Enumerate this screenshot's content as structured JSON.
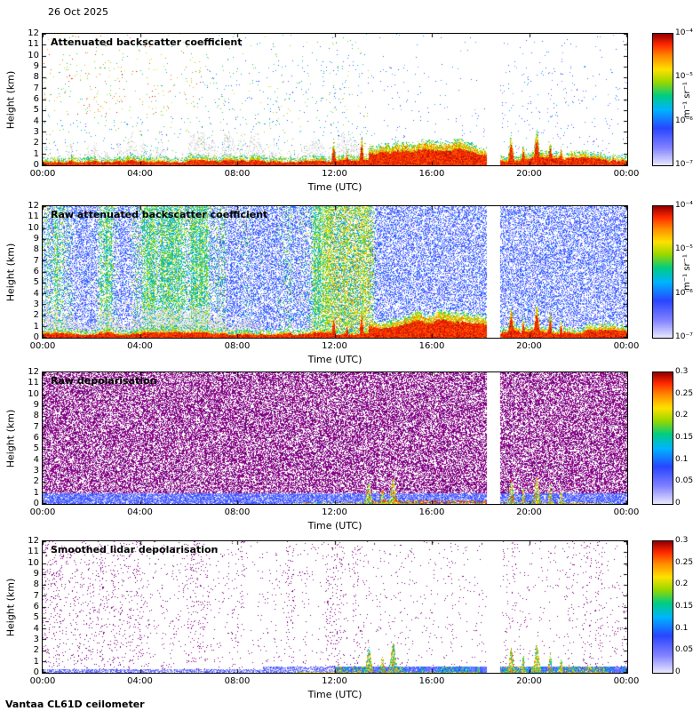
{
  "header": {
    "date": "26 Oct 2025"
  },
  "footer": {
    "instrument": "Vantaa CL61D ceilometer"
  },
  "axes": {
    "x_label": "Time (UTC)",
    "y_label": "Height (km)",
    "x_ticks": [
      "00:00",
      "04:00",
      "08:00",
      "12:00",
      "16:00",
      "20:00",
      "00:00"
    ],
    "y_ticks": [
      "12",
      "11",
      "10",
      "9",
      "8",
      "7",
      "6",
      "5",
      "4",
      "3",
      "2",
      "1",
      "0"
    ]
  },
  "panels": [
    {
      "title": "Attenuated backscatter coefficient",
      "colorbar_ticks": [
        "10⁻⁴",
        "10⁻⁵",
        "10⁻⁶",
        "10⁻⁷"
      ],
      "colorbar_unit": "m⁻¹ sr⁻¹"
    },
    {
      "title": "Raw attenuated backscatter coefficient",
      "colorbar_ticks": [
        "10⁻⁴",
        "10⁻⁵",
        "10⁻⁶",
        "10⁻⁷"
      ],
      "colorbar_unit": "m⁻¹ sr⁻¹"
    },
    {
      "title": "Raw depolarisation",
      "colorbar_ticks": [
        "0.3",
        "0.25",
        "0.2",
        "0.15",
        "0.1",
        "0.05",
        "0"
      ],
      "colorbar_unit": ""
    },
    {
      "title": "Smoothed lidar depolarisation",
      "colorbar_ticks": [
        "0.3",
        "0.25",
        "0.2",
        "0.15",
        "0.1",
        "0.05",
        "0"
      ],
      "colorbar_unit": ""
    }
  ],
  "chart_data": [
    {
      "type": "heatmap",
      "title": "Attenuated backscatter coefficient",
      "xlabel": "Time (UTC)",
      "ylabel": "Height (km)",
      "x_ticks": [
        "00:00",
        "04:00",
        "08:00",
        "12:00",
        "16:00",
        "20:00",
        "00:00"
      ],
      "xlim_hours": [
        0,
        24
      ],
      "ylim": [
        0,
        12
      ],
      "colorbar": {
        "unit": "m⁻¹ sr⁻¹",
        "scale": "log10",
        "min": 1e-07,
        "max": 0.0001,
        "tick_labels": [
          "10⁻⁴",
          "10⁻⁵",
          "10⁻⁶",
          "10⁻⁷"
        ]
      },
      "features": [
        "Strong boundary-layer backscatter (~10⁻⁴ m⁻¹ sr⁻¹, red) below ~1 km across the whole day",
        "Enhanced low-level echo from ~13:30 to 18:15 UTC reaching ~1.5–2 km",
        "Narrow plumes up to ~2–3 km near 12:00–13:30 and 19:00–21:30 UTC",
        "Sparse noise speckle aloft; warmer red/orange speckle 00:00–06:00 above ~5 km, green/yellow streaks 04:00–13:00",
        "Vertical data gap ~18:15–18:50 UTC"
      ]
    },
    {
      "type": "heatmap",
      "title": "Raw attenuated backscatter coefficient",
      "xlabel": "Time (UTC)",
      "ylabel": "Height (km)",
      "x_ticks": [
        "00:00",
        "04:00",
        "08:00",
        "12:00",
        "16:00",
        "20:00",
        "00:00"
      ],
      "xlim_hours": [
        0,
        24
      ],
      "ylim": [
        0,
        12
      ],
      "colorbar": {
        "unit": "m⁻¹ sr⁻¹",
        "scale": "log10",
        "min": 1e-07,
        "max": 0.0001,
        "tick_labels": [
          "10⁻⁴",
          "10⁻⁵",
          "10⁻⁶",
          "10⁻⁷"
        ]
      },
      "features": [
        "Dense low-SNR blue noise at all heights for the whole day",
        "Broad green/yellow noise enhancement in vertical bands 00:00–13:30, strongest ~11:30–13:30",
        "Light grey haze below ~2 km in the 00:00–09:00 period",
        "Same red surface layer and 13:30–18:15 low-level echo as the filtered product",
        "Vertical data gap ~18:15–18:50 UTC"
      ]
    },
    {
      "type": "heatmap",
      "title": "Raw depolarisation",
      "xlabel": "Time (UTC)",
      "ylabel": "Height (km)",
      "x_ticks": [
        "00:00",
        "04:00",
        "08:00",
        "12:00",
        "16:00",
        "20:00",
        "00:00"
      ],
      "xlim_hours": [
        0,
        24
      ],
      "ylim": [
        0,
        12
      ],
      "colorbar": {
        "unit": "",
        "scale": "linear",
        "min": 0,
        "max": 0.3,
        "tick_labels": [
          "0.3",
          "0.25",
          "0.2",
          "0.15",
          "0.1",
          "0.05",
          "0"
        ]
      },
      "features": [
        "Saturated magenta/purple noise (depolarisation near/above 0.3) at nearly all heights",
        "Low-depolarisation blue layer below ~1 km across the day",
        "Mixed high-depolarisation patches near the surface ~13:30–18:15 and 19:00–21:30",
        "Vertical data gap ~18:15–18:50 UTC"
      ]
    },
    {
      "type": "heatmap",
      "title": "Smoothed lidar depolarisation",
      "xlabel": "Time (UTC)",
      "ylabel": "Height (km)",
      "x_ticks": [
        "00:00",
        "04:00",
        "08:00",
        "12:00",
        "16:00",
        "20:00",
        "00:00"
      ],
      "xlim_hours": [
        0,
        24
      ],
      "ylim": [
        0,
        12
      ],
      "colorbar": {
        "unit": "",
        "scale": "linear",
        "min": 0,
        "max": 0.3,
        "tick_labels": [
          "0.3",
          "0.25",
          "0.2",
          "0.15",
          "0.1",
          "0.05",
          "0"
        ]
      },
      "features": [
        "Mostly clear background with sparse residual high-depolarisation speckle",
        "Low-depolarisation (blue) surface layer below ~0.5 km, more colourful/mixed after ~12:00",
        "Columns of mixed depolarisation up to ~2.5–3 km near 13:30–14:30 and 19:00–21:00 UTC",
        "Vertical data gap ~18:15–18:50 UTC"
      ]
    }
  ]
}
